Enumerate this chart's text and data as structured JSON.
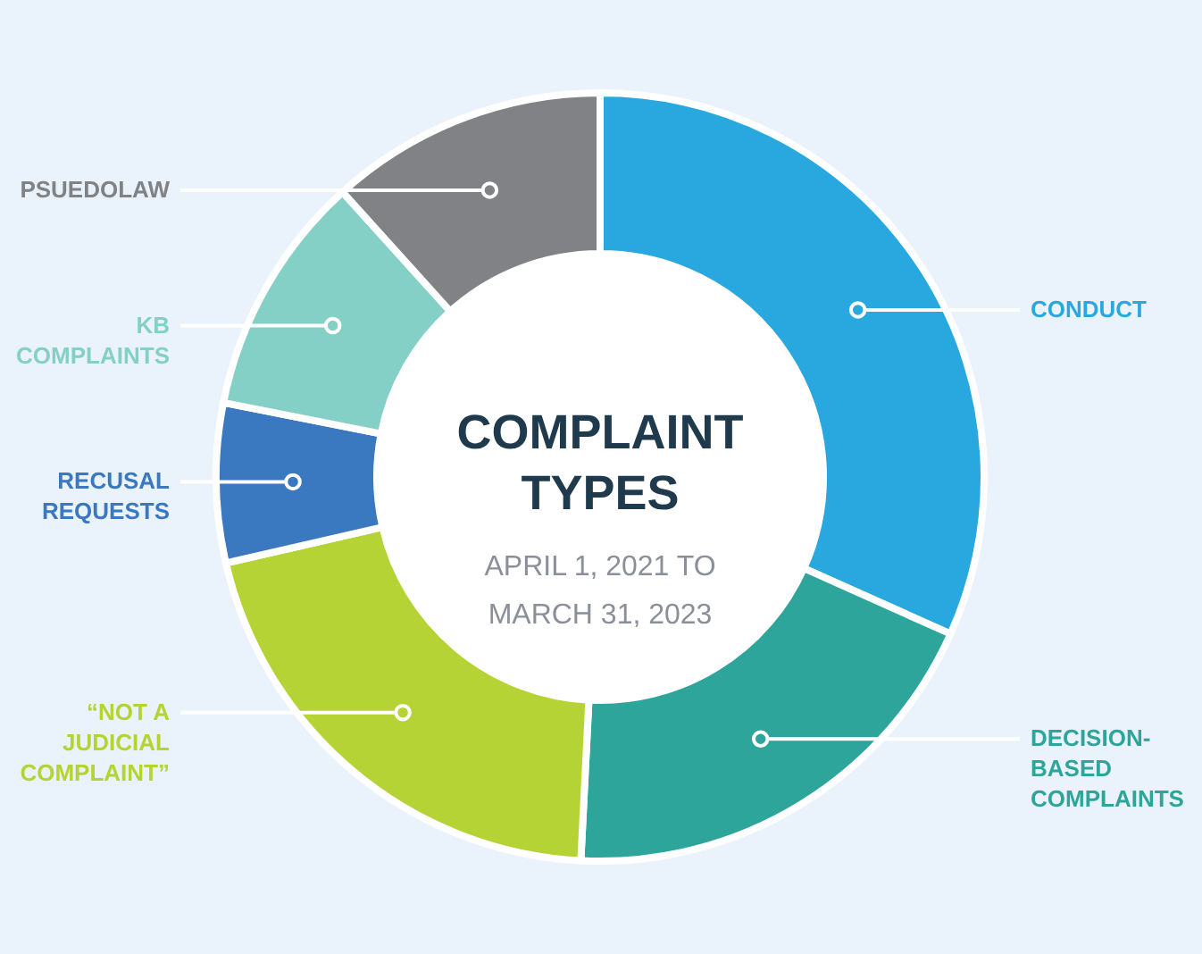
{
  "chart_data": {
    "type": "donut",
    "title": "COMPLAINT TYPES",
    "subtitle": "APRIL 1, 2021 TO MARCH 31, 2023",
    "categories": [
      "CONDUCT",
      "DECISION-BASED COMPLAINTS",
      "“NOT A JUDICIAL COMPLAINT”",
      "RECUSAL REQUESTS",
      "KB COMPLAINTS",
      "PSUEDOLAW"
    ],
    "values": [
      31.7,
      19.1,
      20.6,
      6.7,
      10.2,
      11.7
    ],
    "colors": [
      "#29a8e0",
      "#2ea59a",
      "#b5d334",
      "#3a78bf",
      "#84d0c6",
      "#808285"
    ]
  }
}
